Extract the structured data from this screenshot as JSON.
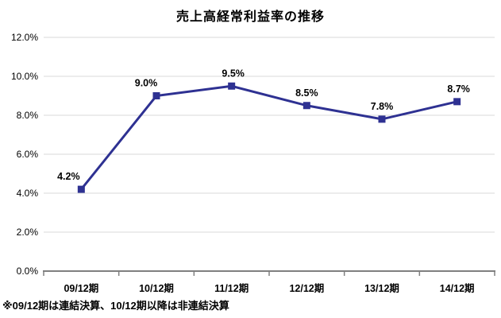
{
  "chart_data": {
    "type": "line",
    "title": "売上高経常利益率の推移",
    "categories": [
      "09/12期",
      "10/12期",
      "11/12期",
      "12/12期",
      "13/12期",
      "14/12期"
    ],
    "values": [
      4.2,
      9.0,
      9.5,
      8.5,
      7.8,
      8.7
    ],
    "data_labels": [
      "4.2%",
      "9.0%",
      "9.5%",
      "8.5%",
      "7.8%",
      "8.7%"
    ],
    "y_ticks": [
      "0.0%",
      "2.0%",
      "4.0%",
      "6.0%",
      "8.0%",
      "10.0%",
      "12.0%"
    ],
    "ylim": [
      0,
      12
    ],
    "y_step": 2,
    "grid": true,
    "legend": "none",
    "xlabel": "",
    "ylabel": "",
    "footnote": "※09/12期は連結決算、10/12期以降は非連結決算",
    "colors": {
      "line": "#2E3192",
      "marker": "#2E3192",
      "gridline": "#D9D9D9",
      "axis": "#808080",
      "text": "#000000",
      "background": "#FFFFFF"
    }
  }
}
